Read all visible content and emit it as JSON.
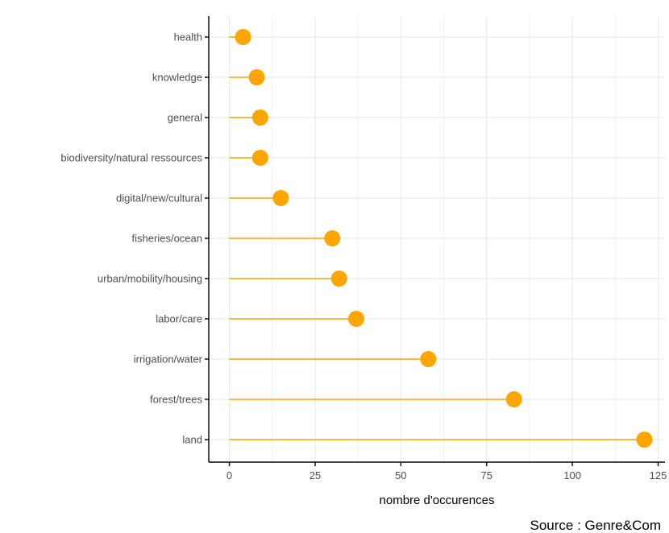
{
  "chart_data": {
    "type": "lollipop",
    "categories": [
      "health",
      "knowledge",
      "general",
      "biodiversity/natural ressources",
      "digital/new/cultural",
      "fisheries/ocean",
      "urban/mobility/housing",
      "labor/care",
      "irrigation/water",
      "forest/trees",
      "land"
    ],
    "values": [
      4,
      8,
      9,
      9,
      15,
      30,
      32,
      37,
      58,
      83,
      121
    ],
    "xlabel": "nombre d'occurences",
    "ylabel": "",
    "xlim": [
      -6,
      127
    ],
    "x_ticks": [
      0,
      25,
      50,
      75,
      100,
      125
    ],
    "grid": true,
    "caption": "Source : Genre&Com",
    "colors": {
      "marker": "#FFA500",
      "grid": "#EBEBEB",
      "axis": "#000000"
    }
  }
}
